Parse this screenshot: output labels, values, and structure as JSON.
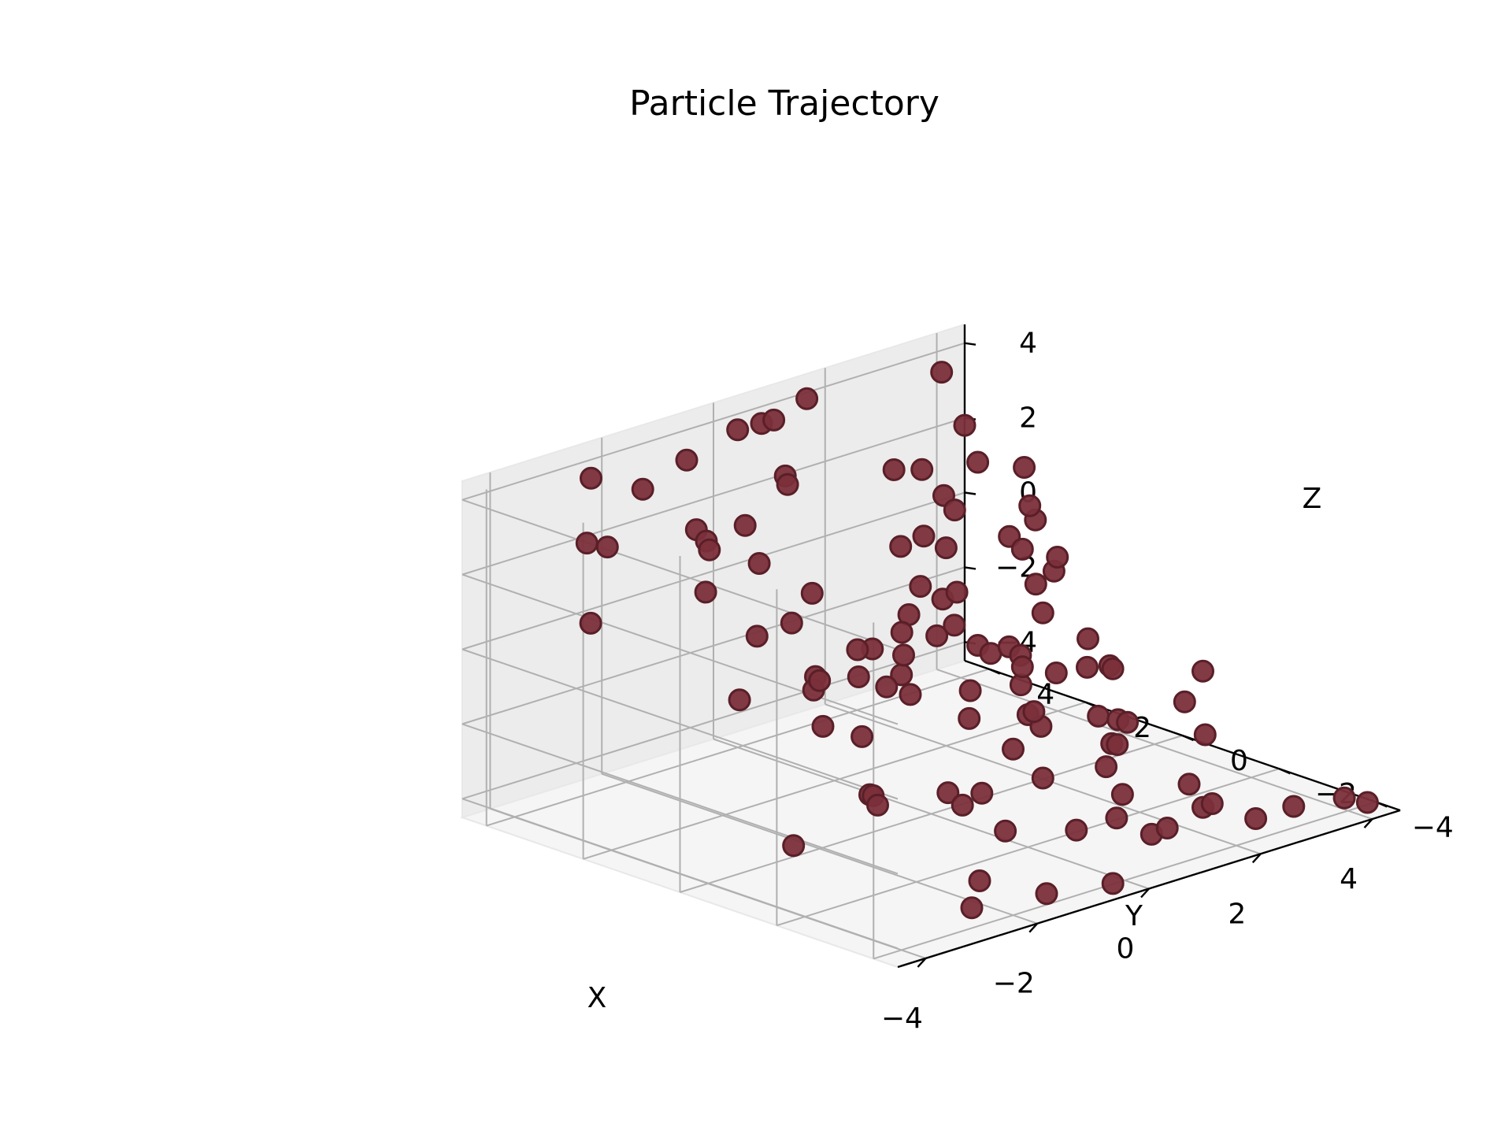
{
  "chart_data": {
    "type": "scatter",
    "title": "Particle Trajectory",
    "xlabel": "X",
    "ylabel": "Y",
    "zlabel": "Z",
    "xlim": [
      -4.5,
      4.5
    ],
    "ylim": [
      -4.5,
      4.5
    ],
    "zlim": [
      -4.5,
      4.5
    ],
    "xticks": [
      -4,
      -2,
      0,
      2,
      4
    ],
    "yticks": [
      -4,
      -2,
      0,
      2,
      4
    ],
    "zticks": [
      -4,
      -2,
      0,
      2,
      4
    ],
    "tick_labels": [
      "−4",
      "−2",
      "0",
      "2",
      "4"
    ],
    "grid": true,
    "marker_color": "#7b2f3a",
    "marker_edge_color": "#5a1f28",
    "points": [
      [
        -4.0,
        2.5,
        3.5
      ],
      [
        -3.2,
        3.0,
        2.8
      ],
      [
        -4.3,
        -1.0,
        1.0
      ],
      [
        -3.5,
        3.0,
        0.9
      ],
      [
        -4.2,
        -2.0,
        -2.5
      ],
      [
        -2.8,
        3.8,
        4.1
      ],
      [
        -2.3,
        2.2,
        3.2
      ],
      [
        -3.0,
        1.2,
        2.3
      ],
      [
        -1.7,
        4.0,
        3.2
      ],
      [
        -1.6,
        2.8,
        2.3
      ],
      [
        -2.6,
        0.6,
        1.2
      ],
      [
        -1.2,
        3.2,
        1.7
      ],
      [
        -1.0,
        2.4,
        1.6
      ],
      [
        -1.0,
        3.9,
        3.7
      ],
      [
        0.0,
        4.0,
        4.0
      ],
      [
        0.3,
        3.6,
        4.3
      ],
      [
        -0.1,
        2.9,
        3.3
      ],
      [
        0.2,
        3.2,
        2.8
      ],
      [
        -2.6,
        -1.8,
        -2.0
      ],
      [
        -2.4,
        -1.5,
        -2.2
      ],
      [
        -2.0,
        0.0,
        0.0
      ],
      [
        -1.2,
        1.5,
        0.5
      ],
      [
        -0.8,
        0.6,
        0.0
      ],
      [
        -0.4,
        2.0,
        0.7
      ],
      [
        -0.3,
        3.5,
        1.8
      ],
      [
        -2.2,
        -0.3,
        -1.0
      ],
      [
        -1.5,
        0.7,
        -0.8
      ],
      [
        -1.5,
        -0.3,
        -1.6
      ],
      [
        -2.0,
        -1.2,
        -2.8
      ],
      [
        -3.0,
        -4.3,
        -3.7
      ],
      [
        -2.6,
        -4.0,
        -3.3
      ],
      [
        -1.0,
        -1.5,
        -2.8
      ],
      [
        -1.0,
        -1.8,
        -3.0
      ],
      [
        0.2,
        -3.6,
        -3.1
      ],
      [
        -1.4,
        -4.0,
        -4.2
      ],
      [
        -1.1,
        -2.8,
        -3.2
      ],
      [
        -1.0,
        -2.2,
        -2.5
      ],
      [
        0.0,
        -3.0,
        -3.6
      ],
      [
        0.7,
        -1.5,
        -3.2
      ],
      [
        1.0,
        -2.8,
        -3.2
      ],
      [
        0.6,
        4.2,
        3.8
      ],
      [
        1.5,
        4.3,
        4.0
      ],
      [
        1.5,
        2.5,
        2.9
      ],
      [
        0.5,
        0.8,
        1.0
      ],
      [
        1.1,
        1.9,
        1.3
      ],
      [
        1.6,
        2.0,
        1.3
      ],
      [
        2.0,
        2.0,
        0.8
      ],
      [
        1.5,
        1.2,
        0.2
      ],
      [
        0.7,
        -0.8,
        0.0
      ],
      [
        1.0,
        -0.7,
        -1.2
      ],
      [
        1.6,
        0.0,
        -1.0
      ],
      [
        1.2,
        -0.5,
        -0.9
      ],
      [
        -0.1,
        -0.9,
        -1.5
      ],
      [
        0.8,
        -1.2,
        -1.6
      ],
      [
        0.6,
        -1.0,
        -2.6
      ],
      [
        1.4,
        -2.0,
        -3.0
      ],
      [
        2.3,
        -1.1,
        -1.2
      ],
      [
        2.1,
        -0.8,
        -1.2
      ],
      [
        1.6,
        -2.0,
        -2.5
      ],
      [
        2.3,
        -0.8,
        -2.6
      ],
      [
        1.5,
        -3.6,
        -2.8
      ],
      [
        2.3,
        -1.4,
        -2.5
      ],
      [
        1.4,
        -4.0,
        -3.2
      ],
      [
        2.0,
        -3.5,
        -3.6
      ],
      [
        0.5,
        -4.3,
        -3.2
      ],
      [
        2.0,
        -4.4,
        -3.6
      ],
      [
        -0.3,
        -4.1,
        -4.4
      ],
      [
        1.0,
        -3.4,
        -4.0
      ],
      [
        3.2,
        -3.8,
        -4.1
      ],
      [
        4.0,
        -4.4,
        -4.1
      ],
      [
        3.5,
        -4.5,
        -3.7
      ],
      [
        3.0,
        -2.2,
        -2.8
      ],
      [
        3.5,
        -1.2,
        -2.6
      ],
      [
        4.0,
        -1.0,
        -2.1
      ],
      [
        3.5,
        0.8,
        -1.8
      ],
      [
        4.3,
        2.8,
        -1.6
      ],
      [
        3.5,
        1.5,
        -0.3
      ],
      [
        3.8,
        2.5,
        -0.3
      ],
      [
        3.3,
        1.2,
        0.3
      ],
      [
        3.6,
        2.0,
        0.8
      ],
      [
        3.0,
        3.2,
        1.2
      ],
      [
        3.3,
        4.0,
        1.4
      ],
      [
        2.5,
        2.4,
        1.4
      ],
      [
        2.7,
        1.5,
        1.0
      ],
      [
        2.2,
        0.5,
        2.5
      ],
      [
        3.4,
        2.0,
        2.3
      ],
      [
        3.0,
        2.5,
        2.4
      ],
      [
        4.0,
        4.4,
        3.5
      ],
      [
        4.5,
        4.5,
        1.8
      ],
      [
        4.6,
        3.0,
        -2.6
      ],
      [
        4.5,
        1.5,
        -3.3
      ],
      [
        3.0,
        -0.4,
        -3.2
      ],
      [
        2.6,
        1.0,
        -3.5
      ],
      [
        2.8,
        -0.5,
        -3.7
      ],
      [
        2.5,
        3.5,
        -3.5
      ],
      [
        3.8,
        1.8,
        -3.3
      ],
      [
        2.0,
        1.5,
        -2.8
      ],
      [
        3.0,
        2.5,
        -2.5
      ],
      [
        2.8,
        2.0,
        -2.4
      ],
      [
        3.5,
        4.5,
        -2.8
      ],
      [
        2.4,
        0.5,
        -3.5
      ],
      [
        4.0,
        4.5,
        -3.6
      ],
      [
        0.5,
        1.5,
        -2.0
      ],
      [
        0.0,
        1.5,
        -1.5
      ],
      [
        -0.6,
        1.7,
        -1.3
      ],
      [
        -0.2,
        0.2,
        -1.3
      ],
      [
        0.2,
        0.8,
        -0.7
      ],
      [
        0.6,
        1.3,
        -0.5
      ],
      [
        1.8,
        1.6,
        -1.0
      ],
      [
        2.2,
        2.3,
        -0.8
      ],
      [
        1.2,
        2.6,
        -1.8
      ]
    ]
  }
}
